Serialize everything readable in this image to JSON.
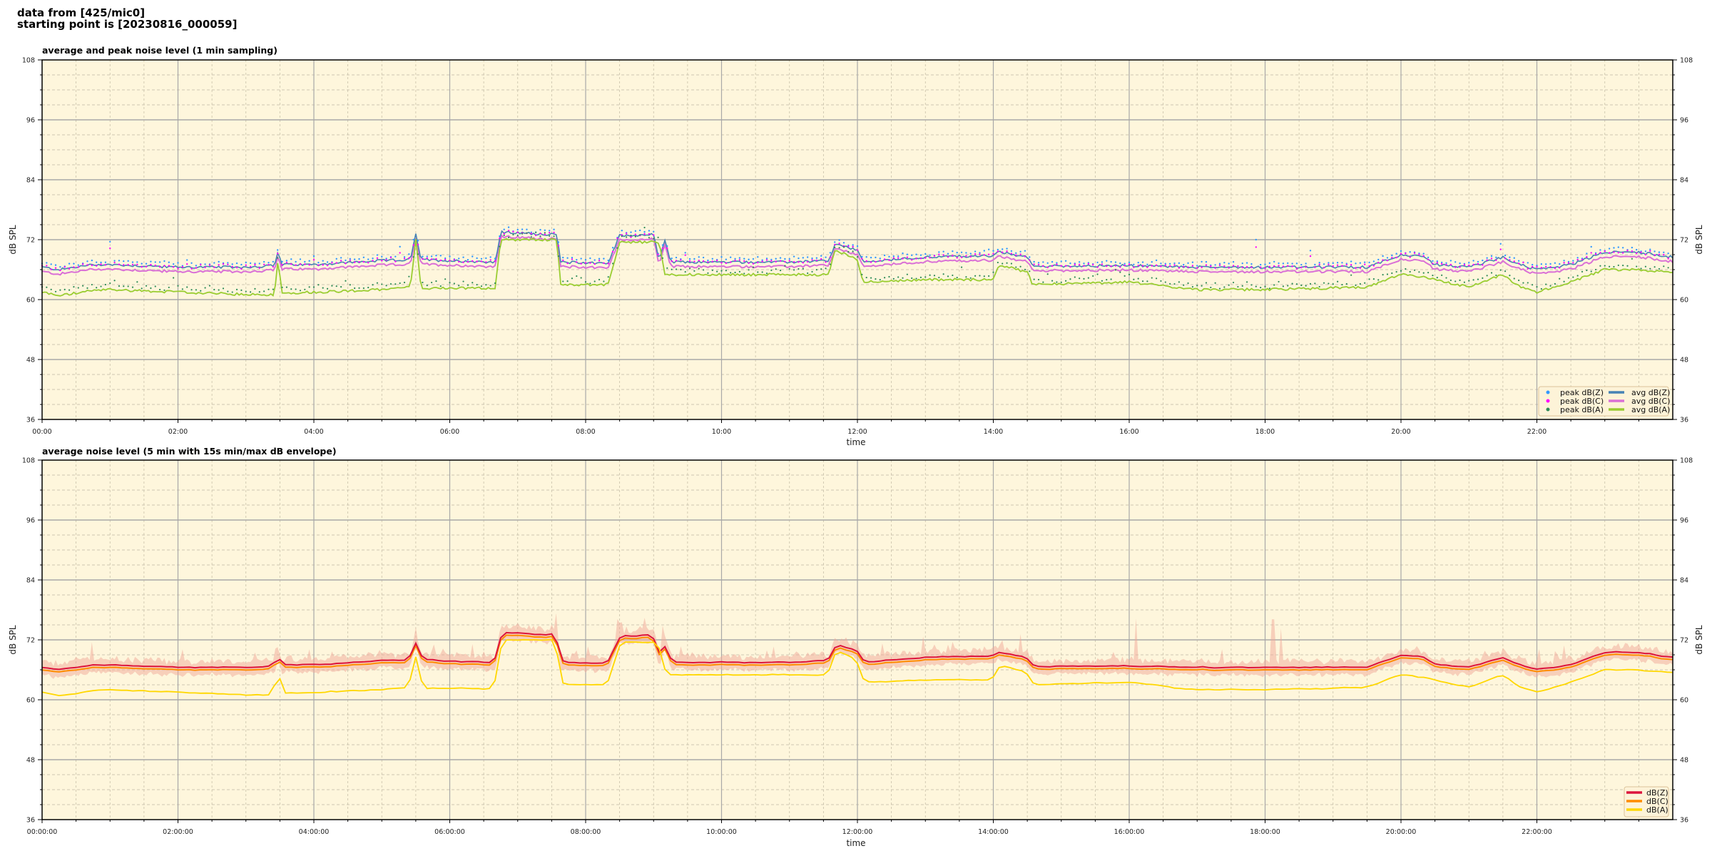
{
  "header": {
    "line1": "data from [425/mic0]",
    "line2": "starting point is [20230816_000059]"
  },
  "chart_data": [
    {
      "type": "line",
      "title": "average and peak noise level (1 min sampling)",
      "xlabel": "time",
      "ylabel": "dB SPL",
      "xlim_hours": [
        0,
        24
      ],
      "ylim": [
        36,
        108
      ],
      "yticks": [
        36,
        48,
        60,
        72,
        84,
        96,
        108
      ],
      "xticks": [
        "00:00",
        "02:00",
        "04:00",
        "06:00",
        "08:00",
        "10:00",
        "12:00",
        "14:00",
        "16:00",
        "18:00",
        "20:00",
        "22:00"
      ],
      "grid": true,
      "background": "#fef6dc",
      "legend_position": "lower-right",
      "legend": [
        {
          "label": "peak dB(Z)",
          "kind": "marker",
          "color": "#3399ff"
        },
        {
          "label": "peak dB(C)",
          "kind": "marker",
          "color": "#ff00ff"
        },
        {
          "label": "peak dB(A)",
          "kind": "marker",
          "color": "#2e8b57"
        },
        {
          "label": "avg dB(Z)",
          "kind": "line",
          "color": "#4682b4"
        },
        {
          "label": "avg dB(C)",
          "kind": "line",
          "color": "#da70d6"
        },
        {
          "label": "avg dB(A)",
          "kind": "line",
          "color": "#9acd32"
        }
      ],
      "series_keypoints": {
        "time_hours": [
          0,
          0.25,
          0.75,
          1,
          2,
          3,
          3.42,
          3.47,
          3.53,
          4,
          5,
          5.42,
          5.5,
          5.58,
          6,
          6.67,
          6.75,
          7.58,
          7.63,
          8.33,
          8.5,
          9,
          9.08,
          9.17,
          9.25,
          10,
          11,
          11.58,
          11.67,
          12,
          12.08,
          13,
          14,
          14.08,
          14.5,
          14.58,
          16,
          17,
          18,
          19.5,
          20,
          20.33,
          20.5,
          21,
          21.5,
          21.75,
          22,
          22.5,
          23,
          23.5,
          24
        ],
        "avg_dB_Z": [
          66.5,
          66,
          67,
          67,
          66.5,
          66.5,
          66.8,
          69.5,
          67,
          67,
          67.8,
          68,
          73,
          68,
          67.8,
          67.5,
          73.5,
          73,
          67.5,
          67.3,
          72.8,
          73,
          68,
          72,
          67.5,
          67.5,
          67.5,
          67.8,
          71,
          70,
          67.5,
          68.5,
          68.8,
          69.5,
          68.5,
          66.7,
          66.8,
          66.5,
          66.5,
          66.5,
          69,
          68.5,
          67,
          66.5,
          68.5,
          67,
          66,
          67,
          69.5,
          69.5,
          68.5
        ],
        "avg_dB_A": [
          61.5,
          60.8,
          61.8,
          62,
          61.5,
          61,
          61,
          68,
          61.3,
          61.5,
          62,
          62.5,
          72,
          62.3,
          62.3,
          62.3,
          72,
          72,
          63,
          63,
          71.5,
          71.5,
          71.5,
          65,
          65,
          65,
          65,
          65,
          70,
          68,
          63.5,
          64,
          64,
          67,
          65.5,
          63,
          63.5,
          62,
          62,
          62.5,
          65,
          64.5,
          64,
          62.5,
          65,
          62.5,
          61.5,
          63.5,
          66,
          66,
          65.5
        ],
        "avg_dB_C_offset_from_Z": -0.5
      }
    },
    {
      "type": "line",
      "title": "average noise level (5 min with 15s min/max dB envelope)",
      "xlabel": "time",
      "ylabel": "dB SPL",
      "xlim_hours": [
        0,
        24
      ],
      "ylim": [
        36,
        108
      ],
      "yticks": [
        36,
        48,
        60,
        72,
        84,
        96,
        108
      ],
      "xticks": [
        "00:00:00",
        "02:00:00",
        "04:00:00",
        "06:00:00",
        "08:00:00",
        "10:00:00",
        "12:00:00",
        "14:00:00",
        "16:00:00",
        "18:00:00",
        "20:00:00",
        "22:00:00"
      ],
      "grid": true,
      "background": "#fef6dc",
      "legend_position": "lower-right",
      "legend": [
        {
          "label": "dB(Z)",
          "kind": "line",
          "color": "#dc143c"
        },
        {
          "label": "dB(C)",
          "kind": "line",
          "color": "#ff8c00"
        },
        {
          "label": "dB(A)",
          "kind": "line",
          "color": "#ffd700"
        }
      ],
      "envelope_color": "#f0a898"
    }
  ]
}
